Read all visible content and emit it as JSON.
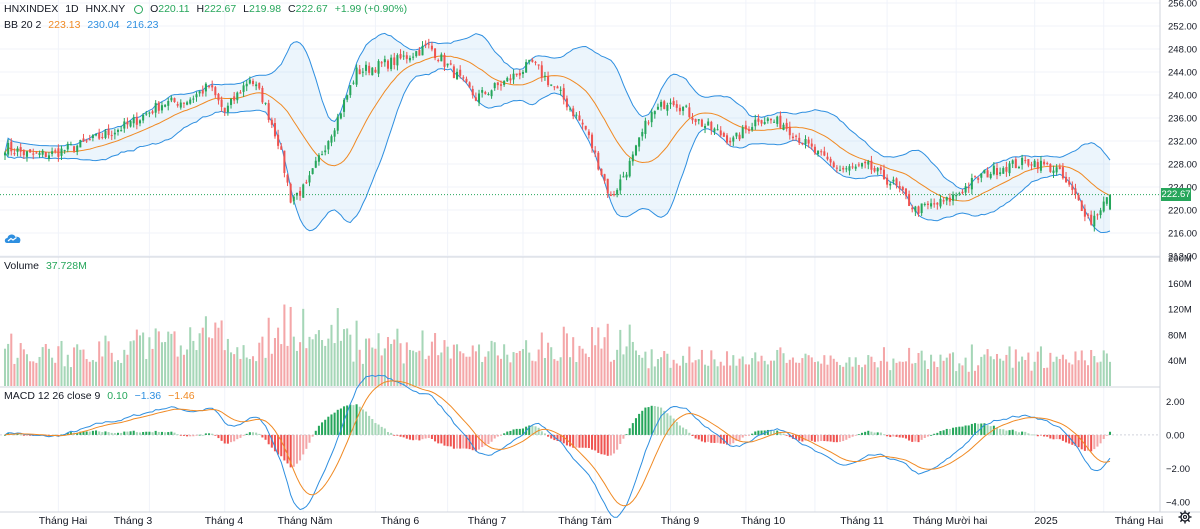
{
  "symbol": "HNXINDEX",
  "interval": "1D",
  "exchange": "HNX.NY",
  "ohlc": {
    "open_label": "O",
    "open": "220.11",
    "high_label": "H",
    "high": "222.67",
    "low_label": "L",
    "low": "219.98",
    "close_label": "C",
    "close": "222.67",
    "change": "+1.99 (+0.90%)"
  },
  "bb": {
    "label": "BB 20 2",
    "basis": "223.13",
    "upper": "230.04",
    "lower": "216.23"
  },
  "volume": {
    "label": "Volume",
    "value": "37.728M"
  },
  "macd": {
    "label": "MACD 12 26 close 9",
    "hist": "0.10",
    "macd": "−1.36",
    "signal": "−1.46"
  },
  "last_price_tag": "222.67",
  "colors": {
    "up": "#26a65b",
    "down": "#ef5350",
    "up_vol": "#a5d6b7",
    "down_vol": "#f4a6a8",
    "bb_band": "#2e8fe0",
    "bb_basis": "#f08a24",
    "macd_line": "#2e8fe0",
    "signal_line": "#f08a24"
  },
  "icons": {
    "logo": "tradingview-cloud-icon",
    "settings": "gear-icon"
  },
  "chart_data": [
    {
      "type": "candlestick",
      "title": "HNXINDEX 1D HNX.NY",
      "x_ticks": [
        "Tháng Hai",
        "Tháng 3",
        "Tháng 4",
        "Tháng Năm",
        "Tháng 6",
        "Tháng 7",
        "Tháng Tám",
        "Tháng 9",
        "Tháng 10",
        "Tháng 11",
        "Tháng Mười hai",
        "2025",
        "Tháng Hai"
      ],
      "y_ticks": [
        "256.00",
        "252.00",
        "248.00",
        "244.00",
        "240.00",
        "236.00",
        "232.00",
        "228.00",
        "224.00",
        "220.00",
        "216.00",
        "212.00"
      ],
      "ylim": [
        212,
        256
      ],
      "close_anchors": [
        [
          0,
          231.0
        ],
        [
          8,
          229.5
        ],
        [
          15,
          229.8
        ],
        [
          25,
          231.5
        ],
        [
          40,
          235.0
        ],
        [
          50,
          238.5
        ],
        [
          58,
          239.0
        ],
        [
          65,
          241.5
        ],
        [
          70,
          237.0
        ],
        [
          78,
          243.0
        ],
        [
          82,
          239.5
        ],
        [
          87,
          232.0
        ],
        [
          91,
          222.0
        ],
        [
          96,
          224.0
        ],
        [
          100,
          229.0
        ],
        [
          106,
          236.0
        ],
        [
          112,
          244.0
        ],
        [
          125,
          246.0
        ],
        [
          135,
          248.5
        ],
        [
          142,
          244.5
        ],
        [
          150,
          239.5
        ],
        [
          160,
          242.5
        ],
        [
          168,
          245.5
        ],
        [
          177,
          240.0
        ],
        [
          185,
          234.0
        ],
        [
          193,
          222.0
        ],
        [
          200,
          229.0
        ],
        [
          205,
          236.0
        ],
        [
          212,
          239.5
        ],
        [
          222,
          235.0
        ],
        [
          232,
          232.0
        ],
        [
          240,
          236.0
        ],
        [
          248,
          235.0
        ],
        [
          258,
          230.0
        ],
        [
          266,
          227.0
        ],
        [
          275,
          227.5
        ],
        [
          283,
          224.5
        ],
        [
          290,
          220.0
        ],
        [
          300,
          221.5
        ],
        [
          311,
          226.0
        ],
        [
          318,
          227.5
        ],
        [
          327,
          228.5
        ],
        [
          335,
          227.0
        ],
        [
          342,
          221.5
        ],
        [
          346,
          218.0
        ],
        [
          349,
          220.5
        ],
        [
          352,
          222.67
        ]
      ],
      "final": {
        "open": 220.11,
        "high": 222.67,
        "low": 219.98,
        "close": 222.67
      },
      "bollinger": {
        "period": 20,
        "mult": 2,
        "last_basis": 223.13,
        "last_upper": 230.04,
        "last_lower": 216.23
      }
    },
    {
      "type": "bar",
      "title": "Volume",
      "y_ticks": [
        "200M",
        "160M",
        "120M",
        "80M",
        "40M"
      ],
      "ylim": [
        0,
        200
      ],
      "unit": "M",
      "last": 37.728
    },
    {
      "type": "macd",
      "title": "MACD 12 26 close 9",
      "y_ticks": [
        "2.00",
        "0.00",
        "−2.00",
        "−4.00"
      ],
      "ylim": [
        -4.6,
        2.8
      ],
      "last": {
        "hist": 0.1,
        "macd": -1.36,
        "signal": -1.46
      }
    }
  ]
}
